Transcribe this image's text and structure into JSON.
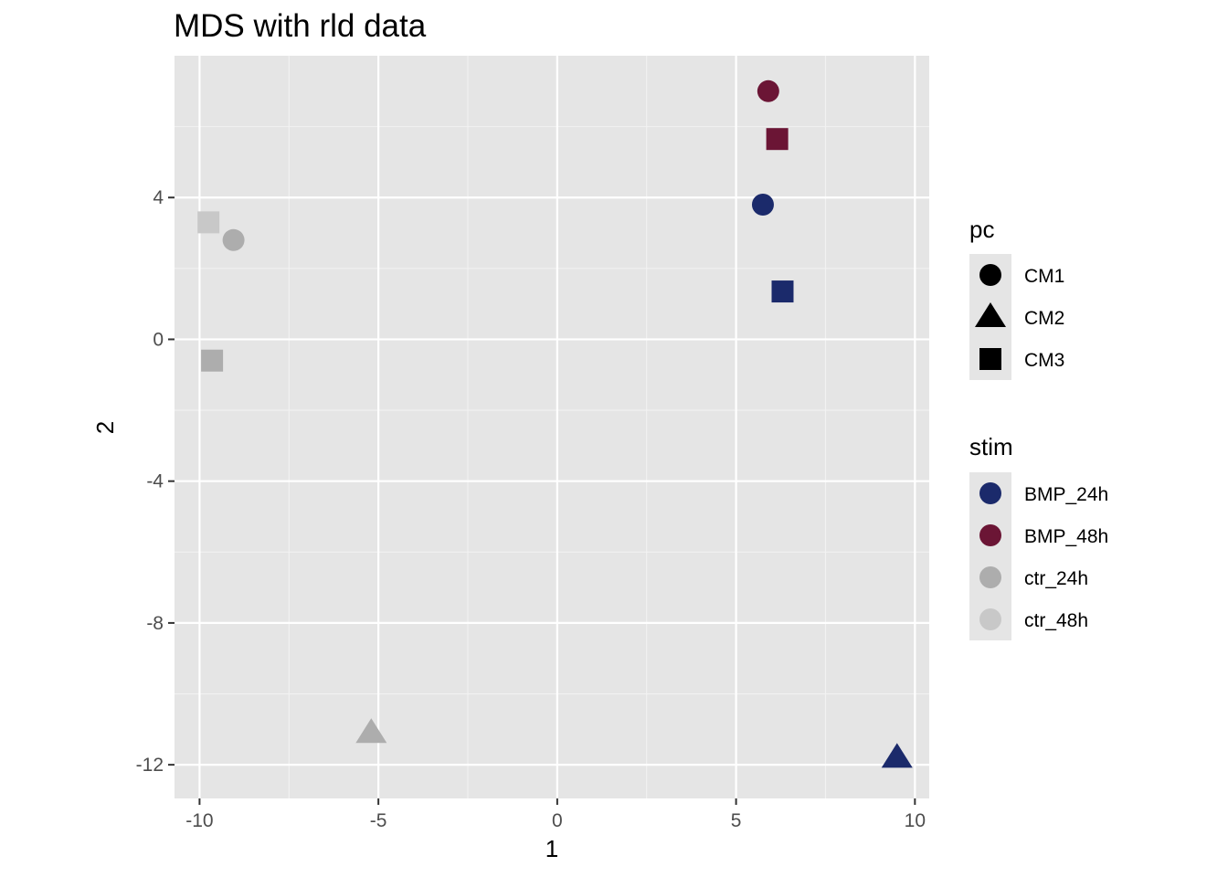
{
  "chart_data": {
    "type": "scatter",
    "title": "MDS with rld data",
    "xlabel": "1",
    "ylabel": "2",
    "xlim": [
      -10.7,
      10.4
    ],
    "ylim": [
      -12.95,
      8.0
    ],
    "xticks": [
      -10,
      -5,
      0,
      5,
      10
    ],
    "xtick_labels": [
      "-10",
      "-5",
      "0",
      "5",
      "10"
    ],
    "yticks": [
      -12,
      -8,
      -4,
      0,
      4
    ],
    "ytick_labels": [
      "-12",
      "-8",
      "-4",
      "0",
      "4"
    ],
    "grid": true,
    "legend_position": "right",
    "legends": {
      "pc": {
        "title": "pc",
        "items": [
          {
            "label": "CM1",
            "shape": "circle"
          },
          {
            "label": "CM2",
            "shape": "triangle"
          },
          {
            "label": "CM3",
            "shape": "square"
          }
        ]
      },
      "stim": {
        "title": "stim",
        "items": [
          {
            "label": "BMP_24h",
            "color": "#1b2a6b"
          },
          {
            "label": "BMP_48h",
            "color": "#6b1535"
          },
          {
            "label": "ctr_24h",
            "color": "#adadad"
          },
          {
            "label": "ctr_48h",
            "color": "#c8c8c8"
          }
        ]
      }
    },
    "points": [
      {
        "x": 5.9,
        "y": 7.0,
        "pc": "CM1",
        "stim": "BMP_48h"
      },
      {
        "x": 6.15,
        "y": 5.65,
        "pc": "CM3",
        "stim": "BMP_48h"
      },
      {
        "x": 5.75,
        "y": 3.8,
        "pc": "CM1",
        "stim": "BMP_24h"
      },
      {
        "x": 6.3,
        "y": 1.35,
        "pc": "CM3",
        "stim": "BMP_24h"
      },
      {
        "x": 9.5,
        "y": -11.8,
        "pc": "CM2",
        "stim": "BMP_24h"
      },
      {
        "x": -9.75,
        "y": 3.3,
        "pc": "CM3",
        "stim": "ctr_48h"
      },
      {
        "x": -9.05,
        "y": 2.8,
        "pc": "CM1",
        "stim": "ctr_24h"
      },
      {
        "x": -9.65,
        "y": -0.6,
        "pc": "CM3",
        "stim": "ctr_24h"
      },
      {
        "x": -5.2,
        "y": -11.1,
        "pc": "CM2",
        "stim": "ctr_24h"
      }
    ]
  }
}
